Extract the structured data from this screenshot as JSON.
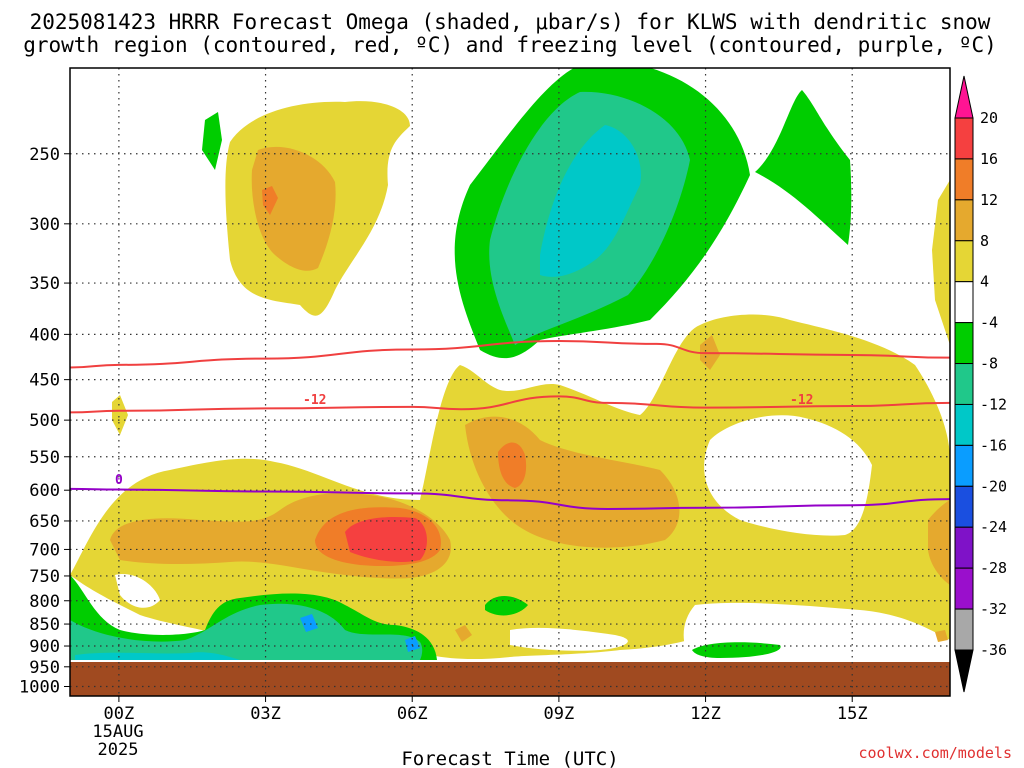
{
  "title": {
    "line1": "2025081423 HRRR Forecast Omega (shaded, μbar/s) for KLWS with dendritic snow",
    "line2": "growth region (contoured, red, ºC) and freezing level (contoured, purple, ºC)"
  },
  "xlabel": "Forecast Time (UTC)",
  "credit": "coolwx.com/models",
  "date_label": {
    "day": "15AUG",
    "year": "2025"
  },
  "contour_labels": {
    "dgz": "-12",
    "freezing": "0"
  },
  "chart_data": {
    "type": "heatmap",
    "title": "2025081423 HRRR Forecast Omega (shaded, μbar/s) for KLWS with dendritic snow growth region (contoured, red, ºC) and freezing level (contoured, purple, ºC)",
    "xlabel": "Forecast Time (UTC)",
    "ylabel": "",
    "x_ticks": [
      "00Z",
      "03Z",
      "06Z",
      "09Z",
      "12Z",
      "15Z"
    ],
    "x_range_hours": [
      -1,
      17
    ],
    "y_ticks": [
      250,
      300,
      350,
      400,
      450,
      500,
      550,
      600,
      650,
      700,
      750,
      800,
      850,
      900,
      950,
      1000
    ],
    "y_range_hpa": [
      200,
      1025
    ],
    "y_scale": "log-pressure",
    "grid": true,
    "colorbar": {
      "levels": [
        20,
        16,
        12,
        8,
        4,
        -4,
        -8,
        -12,
        -16,
        -20,
        -24,
        -28,
        -32,
        -36
      ],
      "colors": [
        "#ff1493",
        "#f54040",
        "#f07d28",
        "#e5a92e",
        "#e5d635",
        "#ffffff",
        "#00cd00",
        "#20c88a",
        "#00c8c8",
        "#0a9dff",
        "#1a4fe0",
        "#7f12c8",
        "#9a0fcc",
        "#a8a8a8",
        "#000000"
      ]
    },
    "series": [
      {
        "name": "-12",
        "kind": "DGZ upper contour",
        "color": "#f04040",
        "points": [
          [
            -1,
            436
          ],
          [
            0,
            433
          ],
          [
            3,
            426
          ],
          [
            6,
            416
          ],
          [
            9,
            407
          ],
          [
            11,
            410
          ],
          [
            12,
            420
          ],
          [
            15,
            422
          ],
          [
            17,
            425
          ]
        ]
      },
      {
        "name": "-12",
        "kind": "DGZ lower contour",
        "color": "#f04040",
        "points": [
          [
            -1,
            490
          ],
          [
            0,
            488
          ],
          [
            3,
            485
          ],
          [
            6,
            483
          ],
          [
            7,
            486
          ],
          [
            9,
            470
          ],
          [
            10,
            478
          ],
          [
            12,
            484
          ],
          [
            15,
            482
          ],
          [
            17,
            478
          ]
        ]
      },
      {
        "name": "0",
        "kind": "freezing level",
        "color": "#9400c8",
        "points": [
          [
            -1,
            598
          ],
          [
            0,
            599
          ],
          [
            3,
            602
          ],
          [
            6,
            605
          ],
          [
            8,
            616
          ],
          [
            10,
            630
          ],
          [
            12,
            628
          ],
          [
            15,
            624
          ],
          [
            17,
            614
          ]
        ]
      }
    ],
    "omega_regions": [
      {
        "value_range": [
          4,
          8
        ],
        "approx_hours": [
          2,
          5
        ],
        "approx_hpa": [
          250,
          400
        ]
      },
      {
        "value_range": [
          8,
          12
        ],
        "approx_hours": [
          3,
          5
        ],
        "approx_hpa": [
          260,
          350
        ]
      },
      {
        "value_range": [
          -16,
          -12
        ],
        "approx_hours": [
          8,
          11
        ],
        "approx_hpa": [
          260,
          350
        ]
      },
      {
        "value_range": [
          -12,
          -4
        ],
        "approx_hours": [
          7,
          13
        ],
        "approx_hpa": [
          200,
          430
        ]
      },
      {
        "value_range": [
          16,
          20
        ],
        "approx_hours": [
          5,
          6
        ],
        "approx_hpa": [
          680,
          730
        ]
      },
      {
        "value_range": [
          -16,
          -4
        ],
        "approx_hours": [
          -1,
          7
        ],
        "approx_hpa": [
          820,
          960
        ]
      }
    ]
  }
}
